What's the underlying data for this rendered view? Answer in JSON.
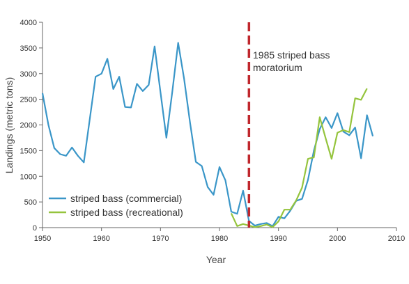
{
  "chart_data": {
    "type": "line",
    "xlabel": "Year",
    "ylabel": "Landings (metric tons)",
    "xlim": [
      1950,
      2010
    ],
    "ylim": [
      0,
      4000
    ],
    "x_ticks": [
      1950,
      1960,
      1970,
      1980,
      1990,
      2000,
      2010
    ],
    "y_ticks": [
      0,
      500,
      1000,
      1500,
      2000,
      2500,
      3000,
      3500,
      4000
    ],
    "grid": false,
    "legend_position": "bottom-left",
    "colors": {
      "commercial": "#3a96c8",
      "recreational": "#95c43d",
      "event_line": "#c0272d",
      "axis": "#666666"
    },
    "event": {
      "x": 1985,
      "label_line1": "1985 striped bass",
      "label_line2": "moratorium"
    },
    "series": [
      {
        "name": "striped bass (commercial)",
        "color": "#3a96c8",
        "x": [
          1950,
          1951,
          1952,
          1953,
          1954,
          1955,
          1956,
          1957,
          1958,
          1959,
          1960,
          1961,
          1962,
          1963,
          1964,
          1965,
          1966,
          1967,
          1968,
          1969,
          1970,
          1971,
          1972,
          1973,
          1974,
          1975,
          1976,
          1977,
          1978,
          1979,
          1980,
          1981,
          1982,
          1983,
          1984,
          1985,
          1986,
          1987,
          1988,
          1989,
          1990,
          1991,
          1992,
          1993,
          1994,
          1995,
          1996,
          1997,
          1998,
          1999,
          2000,
          2001,
          2002,
          2003,
          2004,
          2005,
          2006
        ],
        "y": [
          2620,
          2000,
          1550,
          1430,
          1400,
          1560,
          1400,
          1270,
          2100,
          2940,
          3000,
          3290,
          2700,
          2940,
          2350,
          2340,
          2800,
          2660,
          2780,
          3530,
          2640,
          1750,
          2650,
          3600,
          2900,
          2050,
          1280,
          1200,
          790,
          640,
          1180,
          920,
          310,
          270,
          720,
          130,
          40,
          70,
          90,
          30,
          210,
          180,
          330,
          520,
          560,
          930,
          1500,
          1920,
          2150,
          1940,
          2230,
          1870,
          1800,
          1950,
          1350,
          2190,
          1780
        ]
      },
      {
        "name": "striped bass (recreational)",
        "color": "#95c43d",
        "x": [
          1982,
          1983,
          1984,
          1985,
          1986,
          1987,
          1988,
          1989,
          1990,
          1991,
          1992,
          1993,
          1994,
          1995,
          1996,
          1997,
          1998,
          1999,
          2000,
          2001,
          2002,
          2003,
          2004,
          2005
        ],
        "y": [
          280,
          30,
          70,
          40,
          10,
          30,
          60,
          10,
          120,
          350,
          350,
          530,
          780,
          1340,
          1370,
          2150,
          1740,
          1340,
          1850,
          1900,
          1860,
          2520,
          2490,
          2710
        ]
      }
    ]
  }
}
